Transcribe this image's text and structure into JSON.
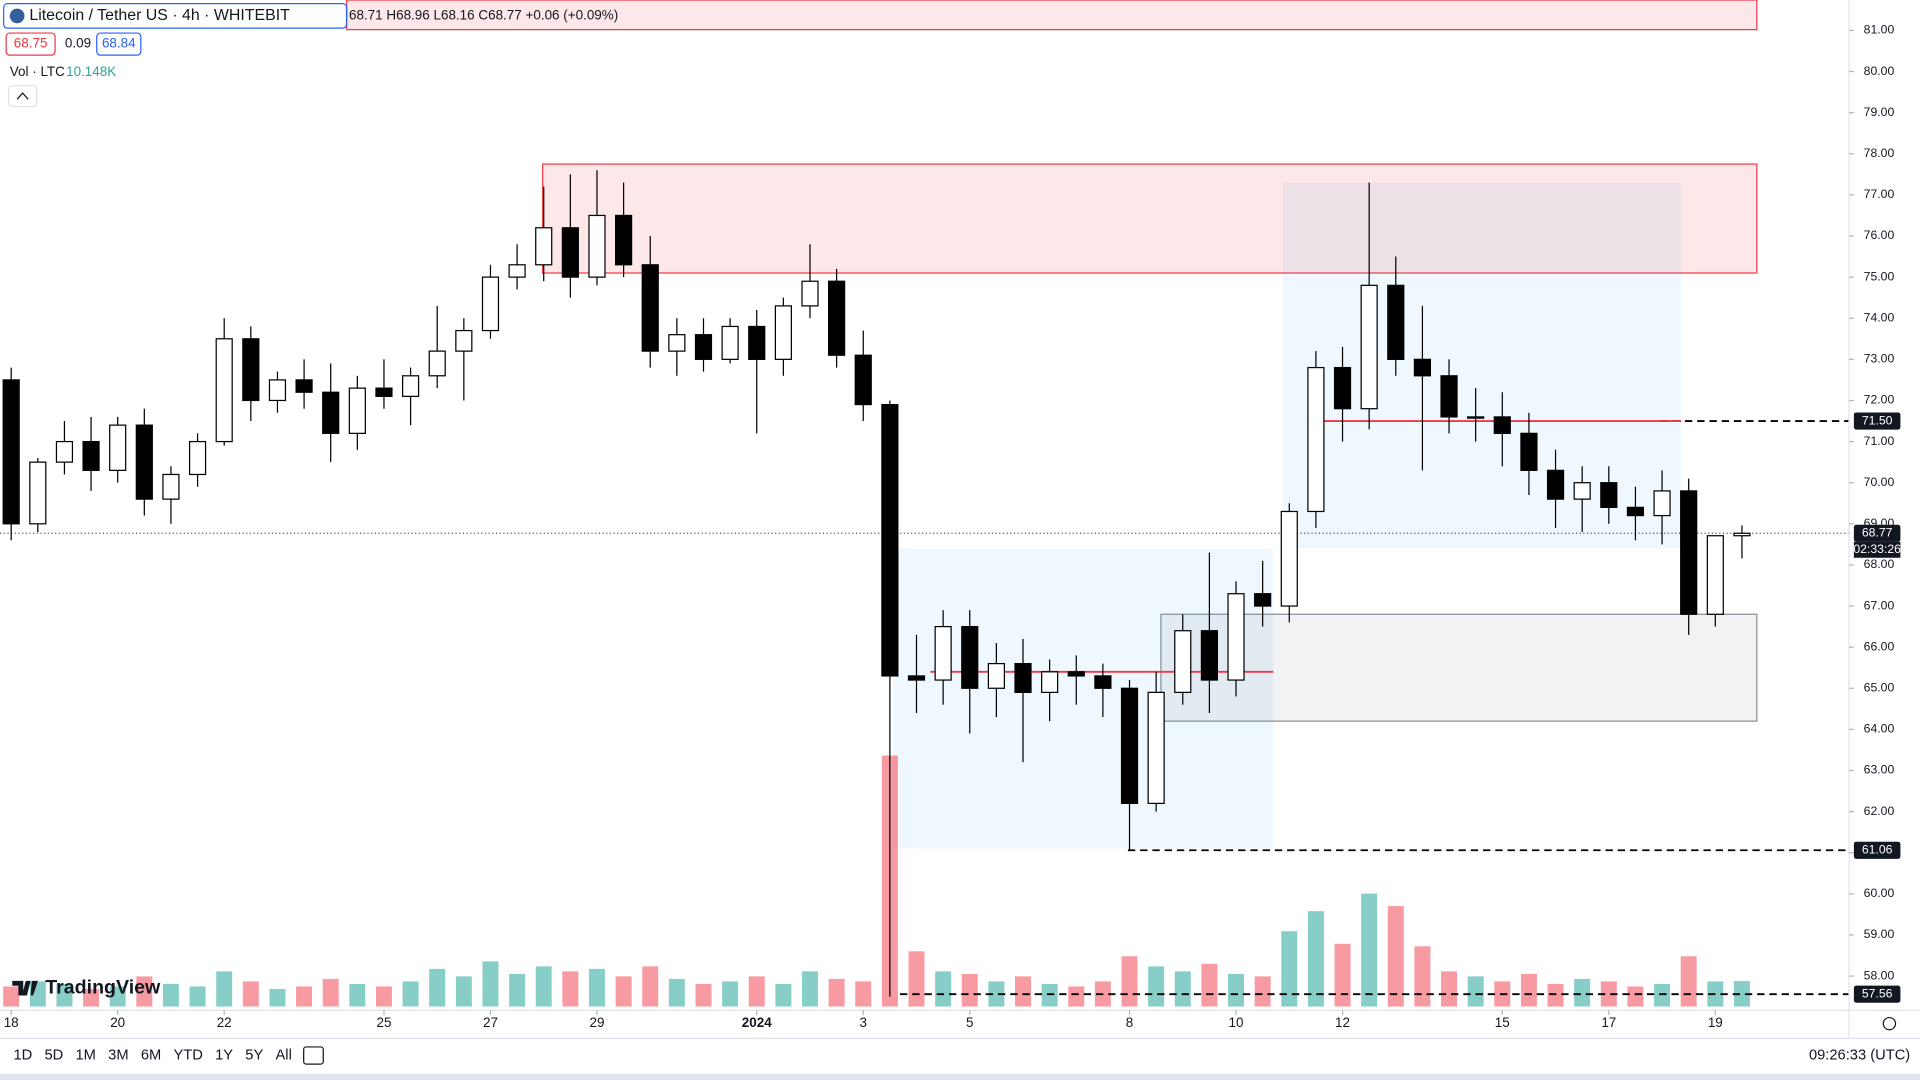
{
  "header": {
    "symbol": "Litecoin / Tether US · 4h · WHITEBIT",
    "ohlc": "68.71 H68.96 L68.16 C68.77 +0.06 (+0.09%)",
    "bid": "68.75",
    "spread": "0.09",
    "ask": "68.84",
    "volume_label": "Vol · LTC",
    "volume_value": "10.148K"
  },
  "logo": "TradingView",
  "toolbar": [
    "1D",
    "5D",
    "1M",
    "3M",
    "6M",
    "YTD",
    "1Y",
    "5Y",
    "All"
  ],
  "clock": "09:26:33 (UTC)",
  "countdown": "02:33:26",
  "chart_data": {
    "type": "candlestick",
    "up_color": "#ffffff",
    "down_color": "#000000",
    "volume_up_color": "rgba(38,166,154,0.55)",
    "volume_down_color": "rgba(242,54,69,0.5)",
    "grid": false,
    "x": [
      0,
      0.5,
      1,
      1.5,
      2,
      2.5,
      3,
      3.5,
      4,
      4.5,
      5,
      5.5,
      6,
      6.5,
      7,
      7.5,
      8,
      8.5,
      9,
      9.5,
      10,
      10.5,
      11,
      11.5,
      12,
      12.5,
      13,
      13.5,
      14,
      14.5,
      15,
      15.5,
      16,
      16.5,
      17,
      17.5,
      18,
      18.5,
      19,
      19.5,
      20,
      20.5,
      21,
      21.5,
      22,
      22.5,
      23,
      23.5,
      24,
      24.5,
      25,
      25.5,
      26,
      26.5,
      27,
      27.5,
      28,
      28.5,
      29,
      29.5,
      30,
      30.5,
      31,
      31.5,
      32,
      32.5
    ],
    "open": [
      72.5,
      69.0,
      70.5,
      71.0,
      70.3,
      71.4,
      69.6,
      70.2,
      71.0,
      73.5,
      72.0,
      72.5,
      72.2,
      71.2,
      72.3,
      72.1,
      72.6,
      73.2,
      73.7,
      75.0,
      75.3,
      76.2,
      75.0,
      76.5,
      75.3,
      73.2,
      73.6,
      73.0,
      73.8,
      73.0,
      74.3,
      74.9,
      73.1,
      71.9,
      65.3,
      65.2,
      66.5,
      65.0,
      65.6,
      64.9,
      65.4,
      65.3,
      65.0,
      62.2,
      64.9,
      66.4,
      65.2,
      67.3,
      67.0,
      69.3,
      72.8,
      71.8,
      74.8,
      73.0,
      72.6,
      71.6,
      71.6,
      71.2,
      70.3,
      69.6,
      70.0,
      69.4,
      69.2,
      69.8,
      66.8,
      68.71
    ],
    "high": [
      72.8,
      70.6,
      71.5,
      71.6,
      71.6,
      71.8,
      70.4,
      71.2,
      74.0,
      73.8,
      72.7,
      73.0,
      72.9,
      72.6,
      73.0,
      72.8,
      74.3,
      74.0,
      75.3,
      75.8,
      77.2,
      77.5,
      77.6,
      77.3,
      76.0,
      74.0,
      74.0,
      74.0,
      74.2,
      74.5,
      75.8,
      75.2,
      73.7,
      72.0,
      66.3,
      66.9,
      66.9,
      66.1,
      66.2,
      65.7,
      65.8,
      65.6,
      65.2,
      65.4,
      66.8,
      68.3,
      67.6,
      68.1,
      69.5,
      73.2,
      73.3,
      77.3,
      75.5,
      74.3,
      73.0,
      72.3,
      72.2,
      71.7,
      70.8,
      70.4,
      70.4,
      69.9,
      70.3,
      70.1,
      68.6,
      68.96
    ],
    "low": [
      68.6,
      68.8,
      70.2,
      69.8,
      70.0,
      69.2,
      69.0,
      69.9,
      70.9,
      71.5,
      71.7,
      71.8,
      70.5,
      70.8,
      71.8,
      71.4,
      72.3,
      72.0,
      73.5,
      74.7,
      74.9,
      74.5,
      74.8,
      75.0,
      72.8,
      72.6,
      72.7,
      72.9,
      71.2,
      72.6,
      74.0,
      72.8,
      71.5,
      57.5,
      64.4,
      64.6,
      63.9,
      64.3,
      63.2,
      64.2,
      64.6,
      64.3,
      61.06,
      62.0,
      64.6,
      64.4,
      64.8,
      66.5,
      66.6,
      68.9,
      71.0,
      71.3,
      72.6,
      70.3,
      71.2,
      71.0,
      70.4,
      69.7,
      68.9,
      68.8,
      69.0,
      68.6,
      68.5,
      66.3,
      66.5,
      68.16
    ],
    "close": [
      69.0,
      70.5,
      71.0,
      70.3,
      71.4,
      69.6,
      70.2,
      71.0,
      73.5,
      72.0,
      72.5,
      72.2,
      71.2,
      72.3,
      72.1,
      72.6,
      73.2,
      73.7,
      75.0,
      75.3,
      76.2,
      75.0,
      76.5,
      75.3,
      73.2,
      73.6,
      73.0,
      73.8,
      73.0,
      74.3,
      74.9,
      73.1,
      71.9,
      65.3,
      65.2,
      66.5,
      65.0,
      65.6,
      64.9,
      65.4,
      65.3,
      65.0,
      62.2,
      64.9,
      66.4,
      65.2,
      67.3,
      67.0,
      69.3,
      72.8,
      71.8,
      74.8,
      73.0,
      72.6,
      71.6,
      71.6,
      71.2,
      70.3,
      69.6,
      70.0,
      69.4,
      69.2,
      69.8,
      66.8,
      68.71,
      68.77
    ],
    "volume": [
      8,
      10,
      9,
      7,
      8,
      12,
      9,
      8,
      14,
      10,
      7,
      8,
      11,
      9,
      8,
      10,
      15,
      12,
      18,
      13,
      16,
      14,
      15,
      12,
      16,
      11,
      9,
      10,
      12,
      9,
      14,
      11,
      10,
      100,
      22,
      14,
      13,
      10,
      12,
      9,
      8,
      10,
      20,
      16,
      14,
      17,
      13,
      12,
      30,
      38,
      25,
      45,
      40,
      24,
      14,
      12,
      10,
      13,
      9,
      11,
      10,
      8,
      9,
      20,
      10,
      10.148
    ],
    "vlim": [
      0,
      100
    ],
    "xlim": [
      -0.21,
      34.51
    ],
    "ylim": [
      57.17,
      81.74
    ],
    "xticks": [
      {
        "value": 0,
        "label": "18"
      },
      {
        "value": 2,
        "label": "20"
      },
      {
        "value": 4,
        "label": "22"
      },
      {
        "value": 7,
        "label": "25"
      },
      {
        "value": 9,
        "label": "27"
      },
      {
        "value": 11,
        "label": "29"
      },
      {
        "value": 14,
        "label": "2024"
      },
      {
        "value": 16,
        "label": "3"
      },
      {
        "value": 18,
        "label": "5"
      },
      {
        "value": 21,
        "label": "8"
      },
      {
        "value": 23,
        "label": "10"
      },
      {
        "value": 25,
        "label": "12"
      },
      {
        "value": 28,
        "label": "15"
      },
      {
        "value": 30,
        "label": "17"
      },
      {
        "value": 32,
        "label": "19"
      }
    ],
    "yticks": [
      {
        "value": 58,
        "label": "58.00"
      },
      {
        "value": 59,
        "label": "59.00"
      },
      {
        "value": 60,
        "label": "60.00"
      },
      {
        "value": 61,
        "label": "61.00"
      },
      {
        "value": 62,
        "label": "62.00"
      },
      {
        "value": 63,
        "label": "63.00"
      },
      {
        "value": 64,
        "label": "64.00"
      },
      {
        "value": 65,
        "label": "65.00"
      },
      {
        "value": 66,
        "label": "66.00"
      },
      {
        "value": 67,
        "label": "67.00"
      },
      {
        "value": 68,
        "label": "68.00"
      },
      {
        "value": 69,
        "label": "69.00"
      },
      {
        "value": 70,
        "label": "70.00"
      },
      {
        "value": 71,
        "label": "71.00"
      },
      {
        "value": 72,
        "label": "72.00"
      },
      {
        "value": 73,
        "label": "73.00"
      },
      {
        "value": 74,
        "label": "74.00"
      },
      {
        "value": 75,
        "label": "75.00"
      },
      {
        "value": 76,
        "label": "76.00"
      },
      {
        "value": 77,
        "label": "77.00"
      },
      {
        "value": 78,
        "label": "78.00"
      },
      {
        "value": 79,
        "label": "79.00"
      },
      {
        "value": 80,
        "label": "80.00"
      },
      {
        "value": 81,
        "label": "81.00"
      }
    ],
    "zones": [
      {
        "y": [
          81.02,
          81.74
        ],
        "x": [
          6.3,
          32.78
        ],
        "fill": "rgba(242,54,69,0.12)",
        "stroke": "#f23645"
      },
      {
        "y": [
          75.1,
          77.75
        ],
        "x": [
          9.98,
          32.78
        ],
        "fill": "rgba(242,54,69,0.12)",
        "stroke": "#f23645"
      },
      {
        "y": [
          64.2,
          66.8
        ],
        "x": [
          21.59,
          32.78
        ],
        "fill": "rgba(120,123,134,0.1)",
        "stroke": "#8a8d96"
      },
      {
        "y": [
          61.1,
          68.4
        ],
        "x": [
          16.57,
          23.7
        ],
        "fill": "rgba(33,150,243,0.07)",
        "stroke": "none"
      },
      {
        "y": [
          68.4,
          77.3
        ],
        "x": [
          23.88,
          31.36
        ],
        "fill": "rgba(33,150,243,0.07)",
        "stroke": "none"
      }
    ],
    "lines": [
      {
        "price": 71.5,
        "x": [
          30.97,
          34.51
        ],
        "style": "dashed",
        "color": "#000000"
      },
      {
        "price": 61.06,
        "x": [
          20.97,
          34.51
        ],
        "style": "dashed",
        "color": "#000000"
      },
      {
        "price": 57.56,
        "x": [
          16.69,
          34.51
        ],
        "style": "dashed",
        "color": "#000000"
      },
      {
        "price": 65.4,
        "x": [
          17.26,
          23.7
        ],
        "style": "solid",
        "color": "#f23645"
      },
      {
        "price": 71.5,
        "x": [
          24.5,
          31.36
        ],
        "style": "solid",
        "color": "#f23645"
      },
      {
        "price": 68.77,
        "x": [
          -0.21,
          34.51
        ],
        "style": "dotted",
        "color": "#555555"
      }
    ],
    "price_labels": [
      {
        "value": 71.5,
        "label": "71.50"
      },
      {
        "value": 68.77,
        "label": "68.77"
      },
      {
        "value": 61.06,
        "label": "61.06"
      },
      {
        "value": 57.56,
        "label": "57.56"
      }
    ]
  }
}
